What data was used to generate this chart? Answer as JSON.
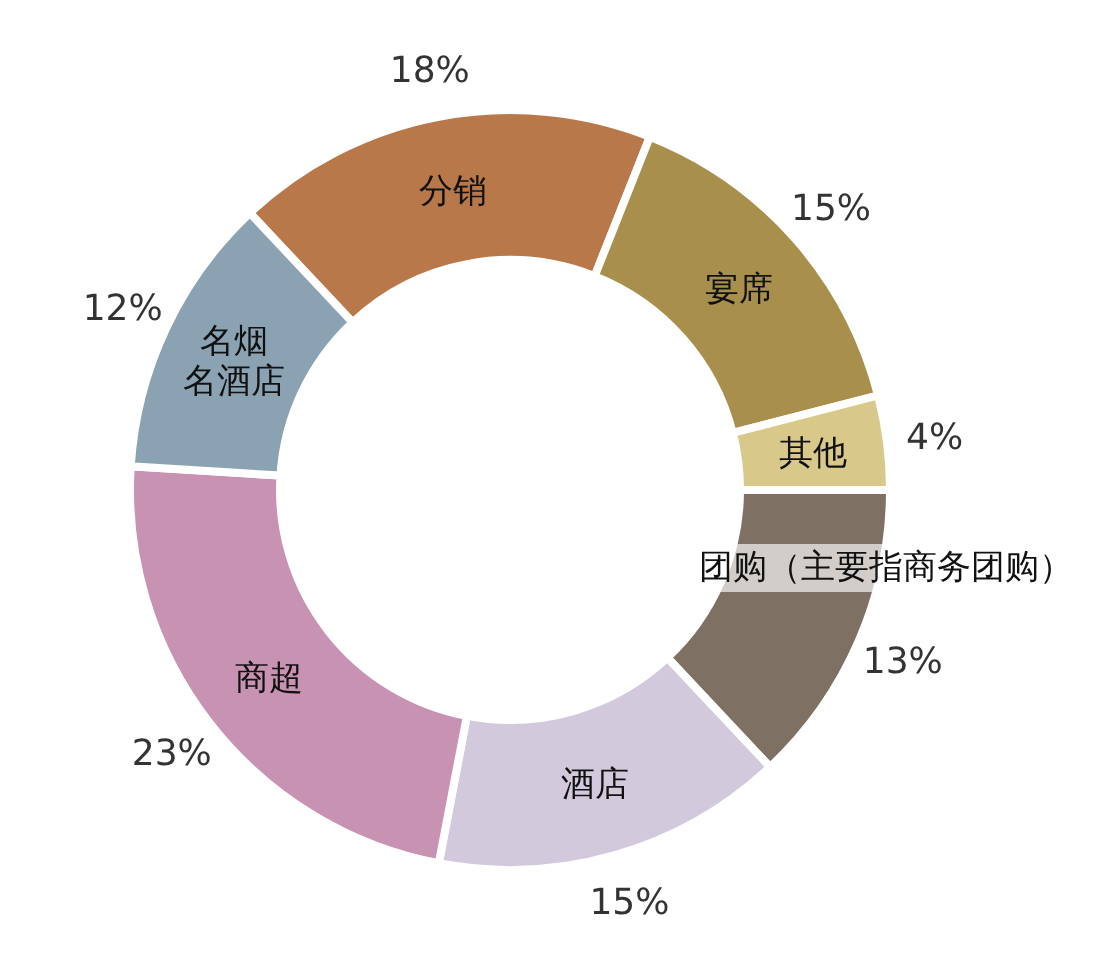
{
  "chart_data": {
    "type": "donut",
    "categories": [
      "分销",
      "宴席",
      "其他",
      "团购（主要指商务团购）",
      "酒店",
      "商超",
      "名烟名酒店"
    ],
    "values": [
      18,
      15,
      4,
      13,
      15,
      23,
      12
    ],
    "value_labels": [
      "18%",
      "15%",
      "4%",
      "13%",
      "15%",
      "23%",
      "12%"
    ],
    "colors": [
      "#b8784a",
      "#a8904c",
      "#d8c88a",
      "#7e7062",
      "#d2cadc",
      "#c892b2",
      "#8aa2b2"
    ]
  }
}
